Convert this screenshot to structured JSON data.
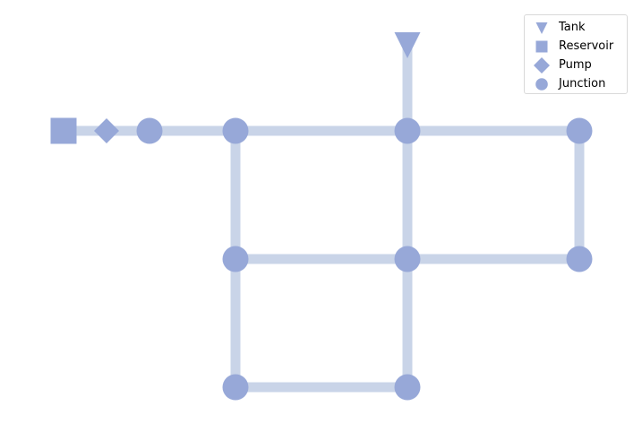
{
  "colors": {
    "node": "#97a8d8",
    "link": "#c9d4e8",
    "background": "#ffffff"
  },
  "legend": {
    "placement": "top-right",
    "items": [
      {
        "symbol": "triangle-down",
        "label": "Tank"
      },
      {
        "symbol": "square",
        "label": "Reservoir"
      },
      {
        "symbol": "diamond",
        "label": "Pump"
      },
      {
        "symbol": "circle",
        "label": "Junction"
      }
    ]
  },
  "network": {
    "nodes": [
      {
        "id": "R",
        "type": "Reservoir"
      },
      {
        "id": "P",
        "type": "Pump"
      },
      {
        "id": "J0",
        "type": "Junction"
      },
      {
        "id": "J1",
        "type": "Junction"
      },
      {
        "id": "J2",
        "type": "Junction"
      },
      {
        "id": "J3",
        "type": "Junction"
      },
      {
        "id": "J4",
        "type": "Junction"
      },
      {
        "id": "J5",
        "type": "Junction"
      },
      {
        "id": "J6",
        "type": "Junction"
      },
      {
        "id": "J7",
        "type": "Junction"
      },
      {
        "id": "J8",
        "type": "Junction"
      },
      {
        "id": "T",
        "type": "Tank"
      }
    ],
    "links": [
      [
        "R",
        "P"
      ],
      [
        "P",
        "J0"
      ],
      [
        "J0",
        "J1"
      ],
      [
        "J1",
        "J2"
      ],
      [
        "J2",
        "J3"
      ],
      [
        "J2",
        "T"
      ],
      [
        "J3",
        "J6"
      ],
      [
        "J1",
        "J4"
      ],
      [
        "J2",
        "J5"
      ],
      [
        "J4",
        "J5"
      ],
      [
        "J5",
        "J6"
      ],
      [
        "J4",
        "J7"
      ],
      [
        "J5",
        "J8"
      ],
      [
        "J7",
        "J8"
      ]
    ]
  }
}
